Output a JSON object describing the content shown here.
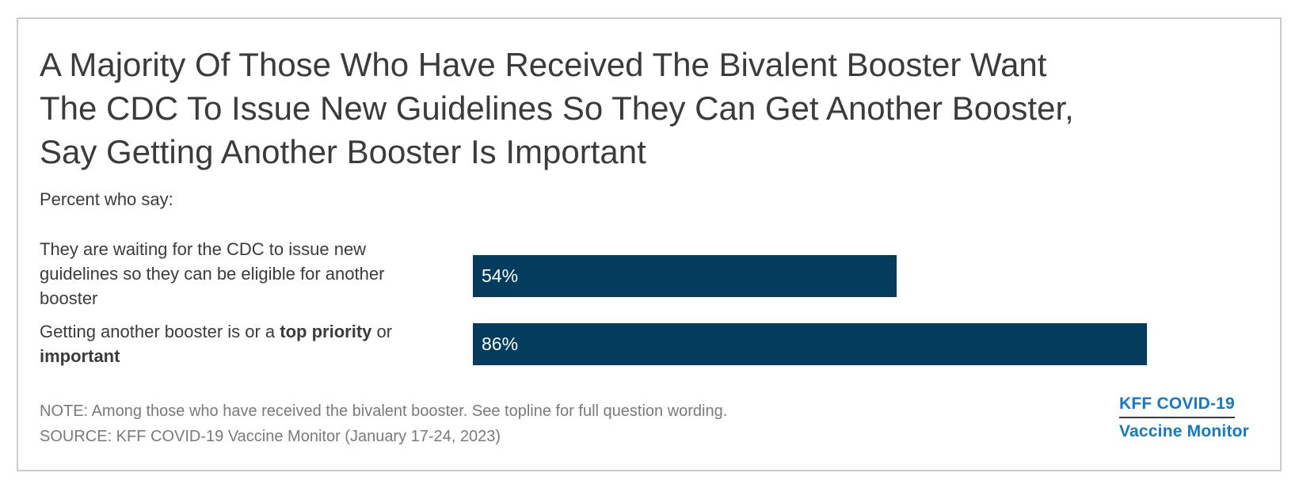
{
  "ui": {
    "title": {
      "lines": [
        "A Majority Of Those Who Have Received The Bivalent Booster Want",
        "The CDC To Issue New Guidelines So They Can Get Another Booster,",
        "Say Getting Another Booster Is Important"
      ]
    },
    "subtitle": "Percent who say:",
    "rows": [
      {
        "label_lines": [
          "They are waiting for the CDC to issue new",
          "guidelines so they can be eligible for another",
          "booster"
        ],
        "value_label": "54%"
      },
      {
        "label_line1_pre": "Getting another booster is or a ",
        "label_line1_bold": "top priority",
        "label_line1_post": " or",
        "label_line2_bold": "important",
        "value_label": "86%"
      }
    ],
    "note": "NOTE: Among those who have received the bivalent booster. See topline for full question wording.",
    "source": "SOURCE: KFF COVID-19 Vaccine Monitor (January 17-24, 2023)",
    "logo": {
      "line1": "KFF COVID-19",
      "line2": "Vaccine Monitor",
      "color": "#1379c8",
      "underline_color": "#3a3a3a"
    },
    "colors": {
      "bar": "#043c5e",
      "text_dark": "#3b3b3b",
      "text_gray": "#7a7a7a",
      "frame_border": "#cbcbcb",
      "bar_value_text": "#ffffff"
    }
  },
  "chart_data": {
    "type": "bar",
    "orientation": "horizontal",
    "title": "A Majority Of Those Who Have Received The Bivalent Booster Want The CDC To Issue New Guidelines So They Can Get Another Booster, Say Getting Another Booster Is Important",
    "subtitle": "Percent who say:",
    "categories": [
      "They are waiting for the CDC to issue new guidelines so they can be eligible for another booster",
      "Getting another booster is or a top priority or important"
    ],
    "values": [
      54,
      86
    ],
    "data_labels": [
      "54%",
      "86%"
    ],
    "xlim": [
      0,
      100
    ],
    "grid": false,
    "legend": false,
    "bar_color": "#043c5e",
    "note": "NOTE: Among those who have received the bivalent booster. See topline for full question wording.",
    "source": "SOURCE: KFF COVID-19 Vaccine Monitor (January 17-24, 2023)"
  }
}
